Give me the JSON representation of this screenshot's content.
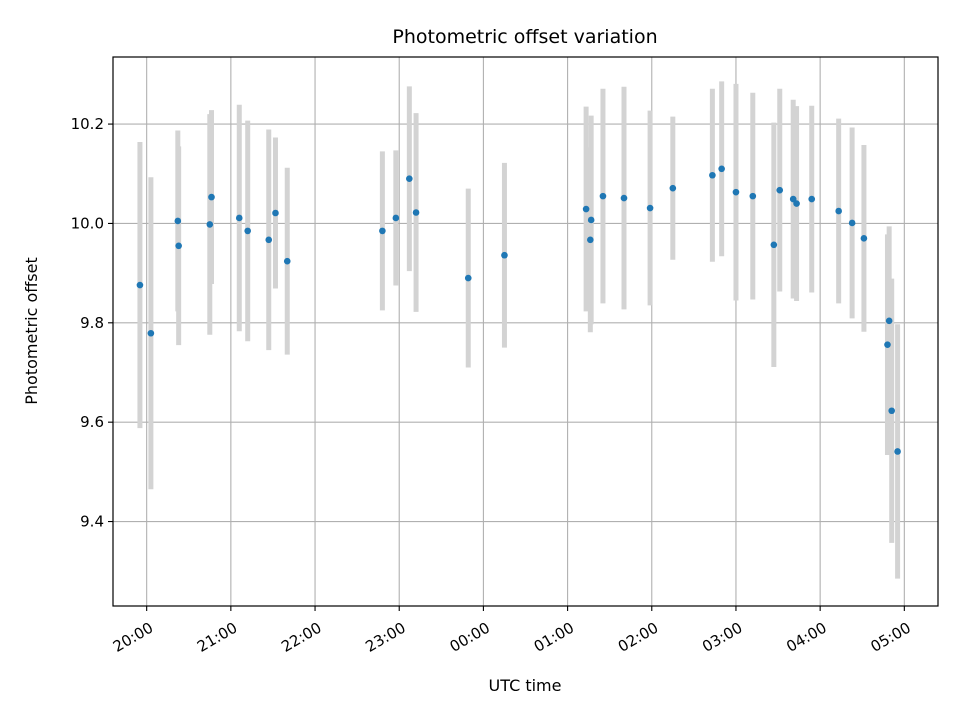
{
  "chart_data": {
    "type": "scatter",
    "title": "Photometric offset variation",
    "xlabel": "UTC time",
    "ylabel": "Photometric offset",
    "x_unit": "hours UTC (values past 24 continue into the next day)",
    "xlim": [
      19.6,
      29.4
    ],
    "ylim": [
      9.23,
      10.335
    ],
    "grid": true,
    "x_ticks": [
      {
        "value": 20,
        "label": "20:00"
      },
      {
        "value": 21,
        "label": "21:00"
      },
      {
        "value": 22,
        "label": "22:00"
      },
      {
        "value": 23,
        "label": "23:00"
      },
      {
        "value": 24,
        "label": "00:00"
      },
      {
        "value": 25,
        "label": "01:00"
      },
      {
        "value": 26,
        "label": "02:00"
      },
      {
        "value": 27,
        "label": "03:00"
      },
      {
        "value": 28,
        "label": "04:00"
      },
      {
        "value": 29,
        "label": "05:00"
      }
    ],
    "y_ticks": [
      {
        "value": 9.4,
        "label": "9.4"
      },
      {
        "value": 9.6,
        "label": "9.6"
      },
      {
        "value": 9.8,
        "label": "9.8"
      },
      {
        "value": 10.0,
        "label": "10.0"
      },
      {
        "value": 10.2,
        "label": "10.2"
      }
    ],
    "colors": {
      "point": "#1f77b4",
      "error_bar": "#d3d3d3",
      "grid": "#b0b0b0"
    },
    "points": [
      {
        "x": 19.92,
        "y": 9.876,
        "err": 0.288
      },
      {
        "x": 20.05,
        "y": 9.779,
        "err": 0.314
      },
      {
        "x": 20.37,
        "y": 10.005,
        "err": 0.182
      },
      {
        "x": 20.38,
        "y": 9.955,
        "err": 0.2
      },
      {
        "x": 20.75,
        "y": 9.998,
        "err": 0.222
      },
      {
        "x": 20.77,
        "y": 10.053,
        "err": 0.175
      },
      {
        "x": 21.1,
        "y": 10.011,
        "err": 0.228
      },
      {
        "x": 21.2,
        "y": 9.985,
        "err": 0.222
      },
      {
        "x": 21.45,
        "y": 9.967,
        "err": 0.222
      },
      {
        "x": 21.53,
        "y": 10.021,
        "err": 0.152
      },
      {
        "x": 21.67,
        "y": 9.924,
        "err": 0.188
      },
      {
        "x": 22.8,
        "y": 9.985,
        "err": 0.16
      },
      {
        "x": 22.96,
        "y": 10.011,
        "err": 0.136
      },
      {
        "x": 23.12,
        "y": 10.09,
        "err": 0.186
      },
      {
        "x": 23.2,
        "y": 10.022,
        "err": 0.2
      },
      {
        "x": 23.82,
        "y": 9.89,
        "err": 0.18
      },
      {
        "x": 24.25,
        "y": 9.936,
        "err": 0.186
      },
      {
        "x": 25.22,
        "y": 10.029,
        "err": 0.206
      },
      {
        "x": 25.27,
        "y": 9.967,
        "err": 0.186
      },
      {
        "x": 25.28,
        "y": 10.007,
        "err": 0.21
      },
      {
        "x": 25.42,
        "y": 10.055,
        "err": 0.216
      },
      {
        "x": 25.67,
        "y": 10.051,
        "err": 0.224
      },
      {
        "x": 25.98,
        "y": 10.031,
        "err": 0.196
      },
      {
        "x": 26.25,
        "y": 10.071,
        "err": 0.144
      },
      {
        "x": 26.72,
        "y": 10.097,
        "err": 0.174
      },
      {
        "x": 26.83,
        "y": 10.11,
        "err": 0.176
      },
      {
        "x": 27.0,
        "y": 10.063,
        "err": 0.218
      },
      {
        "x": 27.2,
        "y": 10.055,
        "err": 0.208
      },
      {
        "x": 27.45,
        "y": 9.957,
        "err": 0.246
      },
      {
        "x": 27.52,
        "y": 10.067,
        "err": 0.204
      },
      {
        "x": 27.68,
        "y": 10.049,
        "err": 0.2
      },
      {
        "x": 27.72,
        "y": 10.04,
        "err": 0.196
      },
      {
        "x": 27.9,
        "y": 10.049,
        "err": 0.188
      },
      {
        "x": 28.22,
        "y": 10.025,
        "err": 0.186
      },
      {
        "x": 28.38,
        "y": 10.001,
        "err": 0.192
      },
      {
        "x": 28.52,
        "y": 9.97,
        "err": 0.188
      },
      {
        "x": 28.8,
        "y": 9.756,
        "err": 0.222
      },
      {
        "x": 28.82,
        "y": 9.804,
        "err": 0.19
      },
      {
        "x": 28.85,
        "y": 9.623,
        "err": 0.266
      },
      {
        "x": 28.92,
        "y": 9.541,
        "err": 0.256
      }
    ]
  }
}
